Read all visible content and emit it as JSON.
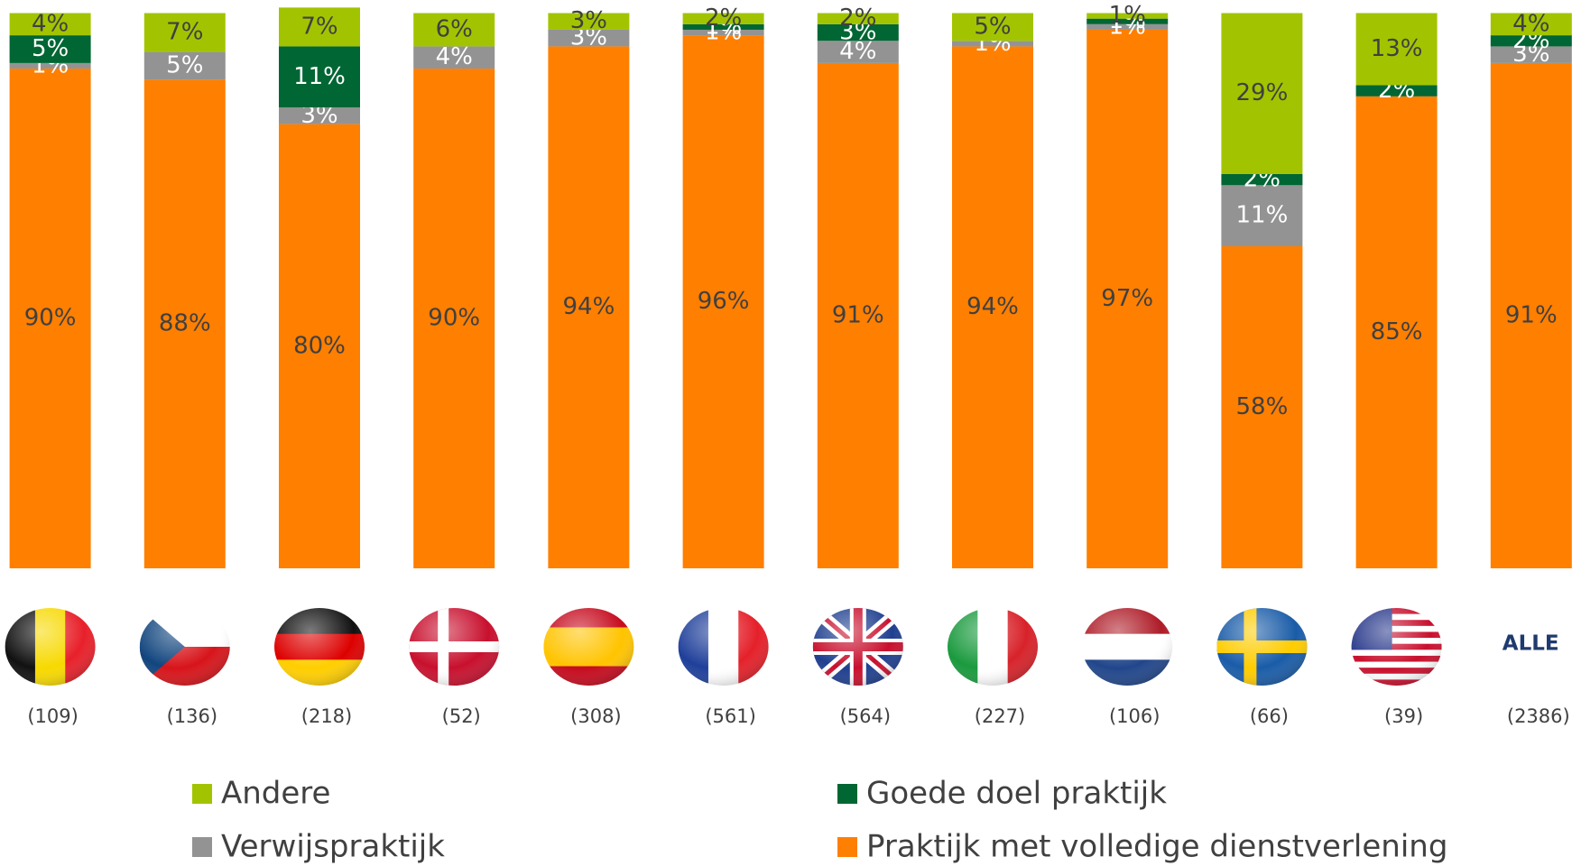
{
  "chart_data": {
    "type": "stacked-bar",
    "categories": [
      "(109)",
      "(136)",
      "(218)",
      "(52)",
      "(308)",
      "(561)",
      "(564)",
      "(227)",
      "(106)",
      "(66)",
      "(39)",
      "(2386)"
    ],
    "group_labels": [
      null,
      null,
      null,
      null,
      null,
      null,
      null,
      null,
      null,
      null,
      null,
      "ALLE"
    ],
    "ylim": [
      0,
      100
    ],
    "series": [
      {
        "name": "Praktijk met volledige dienstverlening",
        "color": "#ff7f00",
        "values": [
          90,
          88,
          80,
          90,
          94,
          96,
          91,
          94,
          97,
          58,
          85,
          91
        ],
        "value_labels": [
          "90%",
          "88%",
          "80%",
          "90%",
          "94%",
          "96%",
          "91%",
          "94%",
          "97%",
          "58%",
          "85%",
          "91%"
        ]
      },
      {
        "name": "Verwijspraktijk",
        "color": "#939393",
        "values": [
          1,
          5,
          3,
          4,
          3,
          1,
          4,
          1,
          1,
          11,
          null,
          3
        ],
        "value_labels": [
          "1%",
          "5%",
          "3%",
          "4%",
          "3%",
          "1%",
          "4%",
          "1%",
          "1%",
          "11%",
          null,
          "3%"
        ]
      },
      {
        "name": "Goede doel praktijk",
        "color": "#006633",
        "values": [
          5,
          null,
          11,
          null,
          null,
          1,
          3,
          null,
          1,
          2,
          2,
          2
        ],
        "value_labels": [
          "5%",
          null,
          "11%",
          null,
          null,
          "1%",
          "3%",
          null,
          "1%",
          "2%",
          "2%",
          "2%"
        ]
      },
      {
        "name": "Andere",
        "color": "#a2c400",
        "values": [
          4,
          7,
          7,
          6,
          3,
          2,
          2,
          5,
          1,
          29,
          13,
          4
        ],
        "value_labels": [
          "4%",
          "7%",
          "7%",
          "6%",
          "3%",
          "2%",
          "2%",
          "5%",
          "1%",
          "29%",
          "13%",
          "4%"
        ]
      }
    ]
  }
}
